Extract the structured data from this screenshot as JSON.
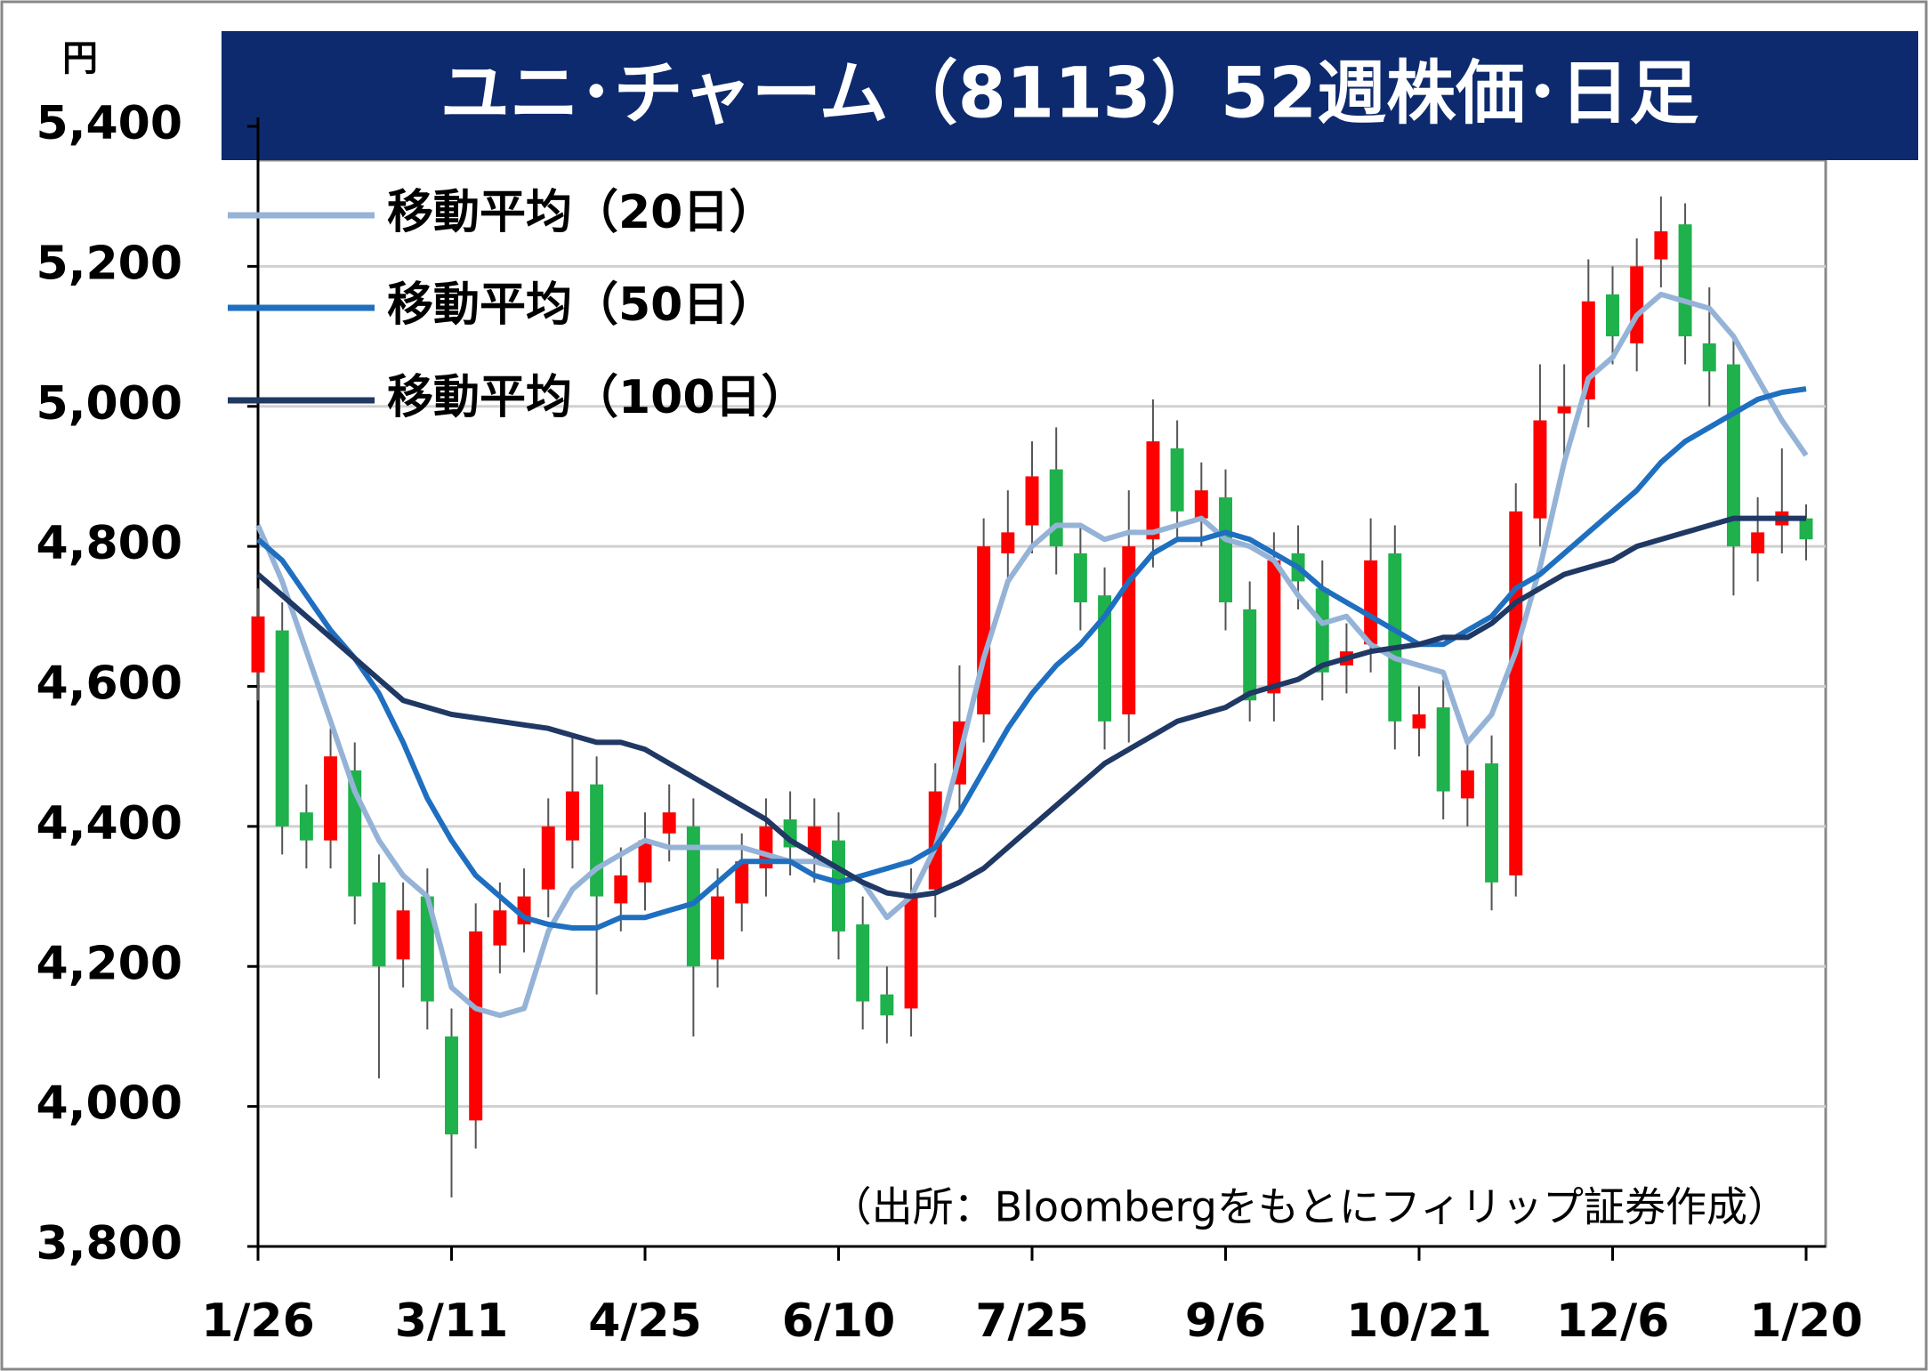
{
  "chart_data": {
    "type": "candlestick",
    "title": "ユニ･チャーム（8113）52週株価･日足",
    "y_unit": "円",
    "source": "（出所：Bloombergをもとにフィリップ証券作成）",
    "categories": [
      "1/26",
      null,
      null,
      null,
      null,
      null,
      null,
      null,
      "3/11",
      null,
      null,
      null,
      null,
      null,
      null,
      null,
      "4/25",
      null,
      null,
      null,
      null,
      null,
      null,
      null,
      "6/10",
      null,
      null,
      null,
      null,
      null,
      null,
      null,
      "7/25",
      null,
      null,
      null,
      null,
      null,
      null,
      null,
      "9/6",
      null,
      null,
      null,
      null,
      null,
      null,
      null,
      "10/21",
      null,
      null,
      null,
      null,
      null,
      null,
      null,
      "12/6",
      null,
      null,
      null,
      null,
      null,
      null,
      null,
      "1/20"
    ],
    "open": [
      4620,
      4680,
      4420,
      4380,
      4480,
      4320,
      4210,
      4300,
      4100,
      3980,
      4230,
      4260,
      4310,
      4380,
      4460,
      4290,
      4320,
      4390,
      4400,
      4210,
      4290,
      4340,
      4410,
      4360,
      4380,
      4260,
      4160,
      4140,
      4310,
      4460,
      4560,
      4790,
      4830,
      4910,
      4790,
      4730,
      4560,
      4810,
      4940,
      4840,
      4870,
      4710,
      4590,
      4790,
      4740,
      4630,
      4660,
      4790,
      4540,
      4570,
      4440,
      4490,
      4330,
      4840,
      4990,
      5010,
      5160,
      5090,
      5210,
      5260,
      5090,
      5060,
      4790,
      4830,
      4840
    ],
    "high": [
      4740,
      4720,
      4460,
      4540,
      4520,
      4360,
      4320,
      4340,
      4140,
      4290,
      4320,
      4340,
      4440,
      4530,
      4500,
      4370,
      4420,
      4460,
      4440,
      4340,
      4390,
      4440,
      4450,
      4440,
      4420,
      4300,
      4200,
      4340,
      4490,
      4630,
      4840,
      4880,
      4950,
      4970,
      4830,
      4770,
      4880,
      5010,
      4980,
      4920,
      4910,
      4750,
      4820,
      4830,
      4780,
      4690,
      4840,
      4830,
      4600,
      4610,
      4520,
      4530,
      4890,
      5060,
      5060,
      5210,
      5200,
      5240,
      5300,
      5290,
      5170,
      5100,
      4870,
      4940,
      4860
    ],
    "low": [
      4580,
      4360,
      4340,
      4340,
      4260,
      4040,
      4170,
      4110,
      3870,
      3940,
      4190,
      4220,
      4270,
      4340,
      4160,
      4250,
      4280,
      4350,
      4100,
      4170,
      4250,
      4300,
      4330,
      4320,
      4210,
      4110,
      4090,
      4100,
      4270,
      4420,
      4520,
      4750,
      4790,
      4760,
      4680,
      4510,
      4520,
      4770,
      4810,
      4800,
      4680,
      4550,
      4550,
      4710,
      4580,
      4590,
      4620,
      4510,
      4500,
      4410,
      4400,
      4280,
      4300,
      4800,
      4930,
      4970,
      5060,
      5050,
      5170,
      5060,
      5000,
      4730,
      4750,
      4790,
      4780
    ],
    "close": [
      4700,
      4400,
      4380,
      4500,
      4300,
      4200,
      4280,
      4150,
      3960,
      4250,
      4280,
      4300,
      4400,
      4450,
      4300,
      4330,
      4380,
      4420,
      4200,
      4300,
      4350,
      4400,
      4370,
      4400,
      4250,
      4150,
      4130,
      4300,
      4450,
      4550,
      4800,
      4820,
      4900,
      4800,
      4720,
      4550,
      4800,
      4950,
      4850,
      4880,
      4720,
      4580,
      4780,
      4750,
      4620,
      4650,
      4780,
      4550,
      4560,
      4450,
      4480,
      4320,
      4850,
      4980,
      5000,
      5150,
      5100,
      5200,
      5250,
      5100,
      5050,
      4800,
      4820,
      4850,
      4810
    ],
    "up_color": "#ff0000",
    "down_color": "#1fb14c",
    "series": [
      {
        "name": "移動平均（20日）",
        "color": "#95b3d7",
        "values": [
          4830,
          4750,
          4650,
          4550,
          4450,
          4380,
          4330,
          4300,
          4170,
          4140,
          4130,
          4140,
          4250,
          4310,
          4340,
          4360,
          4380,
          4370,
          4370,
          4370,
          4370,
          4360,
          4350,
          4350,
          4340,
          4320,
          4270,
          4300,
          4370,
          4500,
          4640,
          4750,
          4800,
          4830,
          4830,
          4810,
          4820,
          4820,
          4830,
          4840,
          4810,
          4800,
          4780,
          4730,
          4690,
          4700,
          4660,
          4640,
          4630,
          4620,
          4520,
          4560,
          4650,
          4770,
          4920,
          5040,
          5070,
          5130,
          5160,
          5150,
          5140,
          5100,
          5040,
          4980,
          4930
        ]
      },
      {
        "name": "移動平均（50日）",
        "color": "#1f6fc0",
        "values": [
          4810,
          4780,
          4730,
          4680,
          4640,
          4590,
          4520,
          4440,
          4380,
          4330,
          4300,
          4270,
          4260,
          4255,
          4255,
          4270,
          4270,
          4280,
          4290,
          4320,
          4350,
          4350,
          4350,
          4330,
          4320,
          4330,
          4340,
          4350,
          4370,
          4420,
          4480,
          4540,
          4590,
          4630,
          4660,
          4700,
          4750,
          4790,
          4810,
          4810,
          4820,
          4810,
          4790,
          4770,
          4740,
          4720,
          4700,
          4680,
          4660,
          4660,
          4680,
          4700,
          4740,
          4760,
          4790,
          4820,
          4850,
          4880,
          4920,
          4950,
          4970,
          4990,
          5010,
          5020,
          5025
        ]
      },
      {
        "name": "移動平均（100日）",
        "color": "#1f3864",
        "values": [
          4760,
          4730,
          4700,
          4670,
          4640,
          4610,
          4580,
          4570,
          4560,
          4555,
          4550,
          4545,
          4540,
          4530,
          4520,
          4520,
          4510,
          4490,
          4470,
          4450,
          4430,
          4410,
          4380,
          4360,
          4340,
          4320,
          4305,
          4300,
          4305,
          4320,
          4340,
          4370,
          4400,
          4430,
          4460,
          4490,
          4510,
          4530,
          4550,
          4560,
          4570,
          4590,
          4600,
          4610,
          4630,
          4640,
          4650,
          4655,
          4660,
          4670,
          4670,
          4690,
          4720,
          4740,
          4760,
          4770,
          4780,
          4800,
          4810,
          4820,
          4830,
          4840,
          4840,
          4840,
          4840
        ]
      }
    ],
    "ylim": [
      3800,
      5400
    ],
    "yticks": [
      {
        "value": 3800,
        "label": "3,800"
      },
      {
        "value": 4000,
        "label": "4,000"
      },
      {
        "value": 4200,
        "label": "4,200"
      },
      {
        "value": 4400,
        "label": "4,400"
      },
      {
        "value": 4600,
        "label": "4,600"
      },
      {
        "value": 4800,
        "label": "4,800"
      },
      {
        "value": 5000,
        "label": "5,000"
      },
      {
        "value": 5200,
        "label": "5,200"
      },
      {
        "value": 5400,
        "label": "5,400"
      }
    ],
    "grid": true,
    "title_bg": "#0d2a6e"
  }
}
